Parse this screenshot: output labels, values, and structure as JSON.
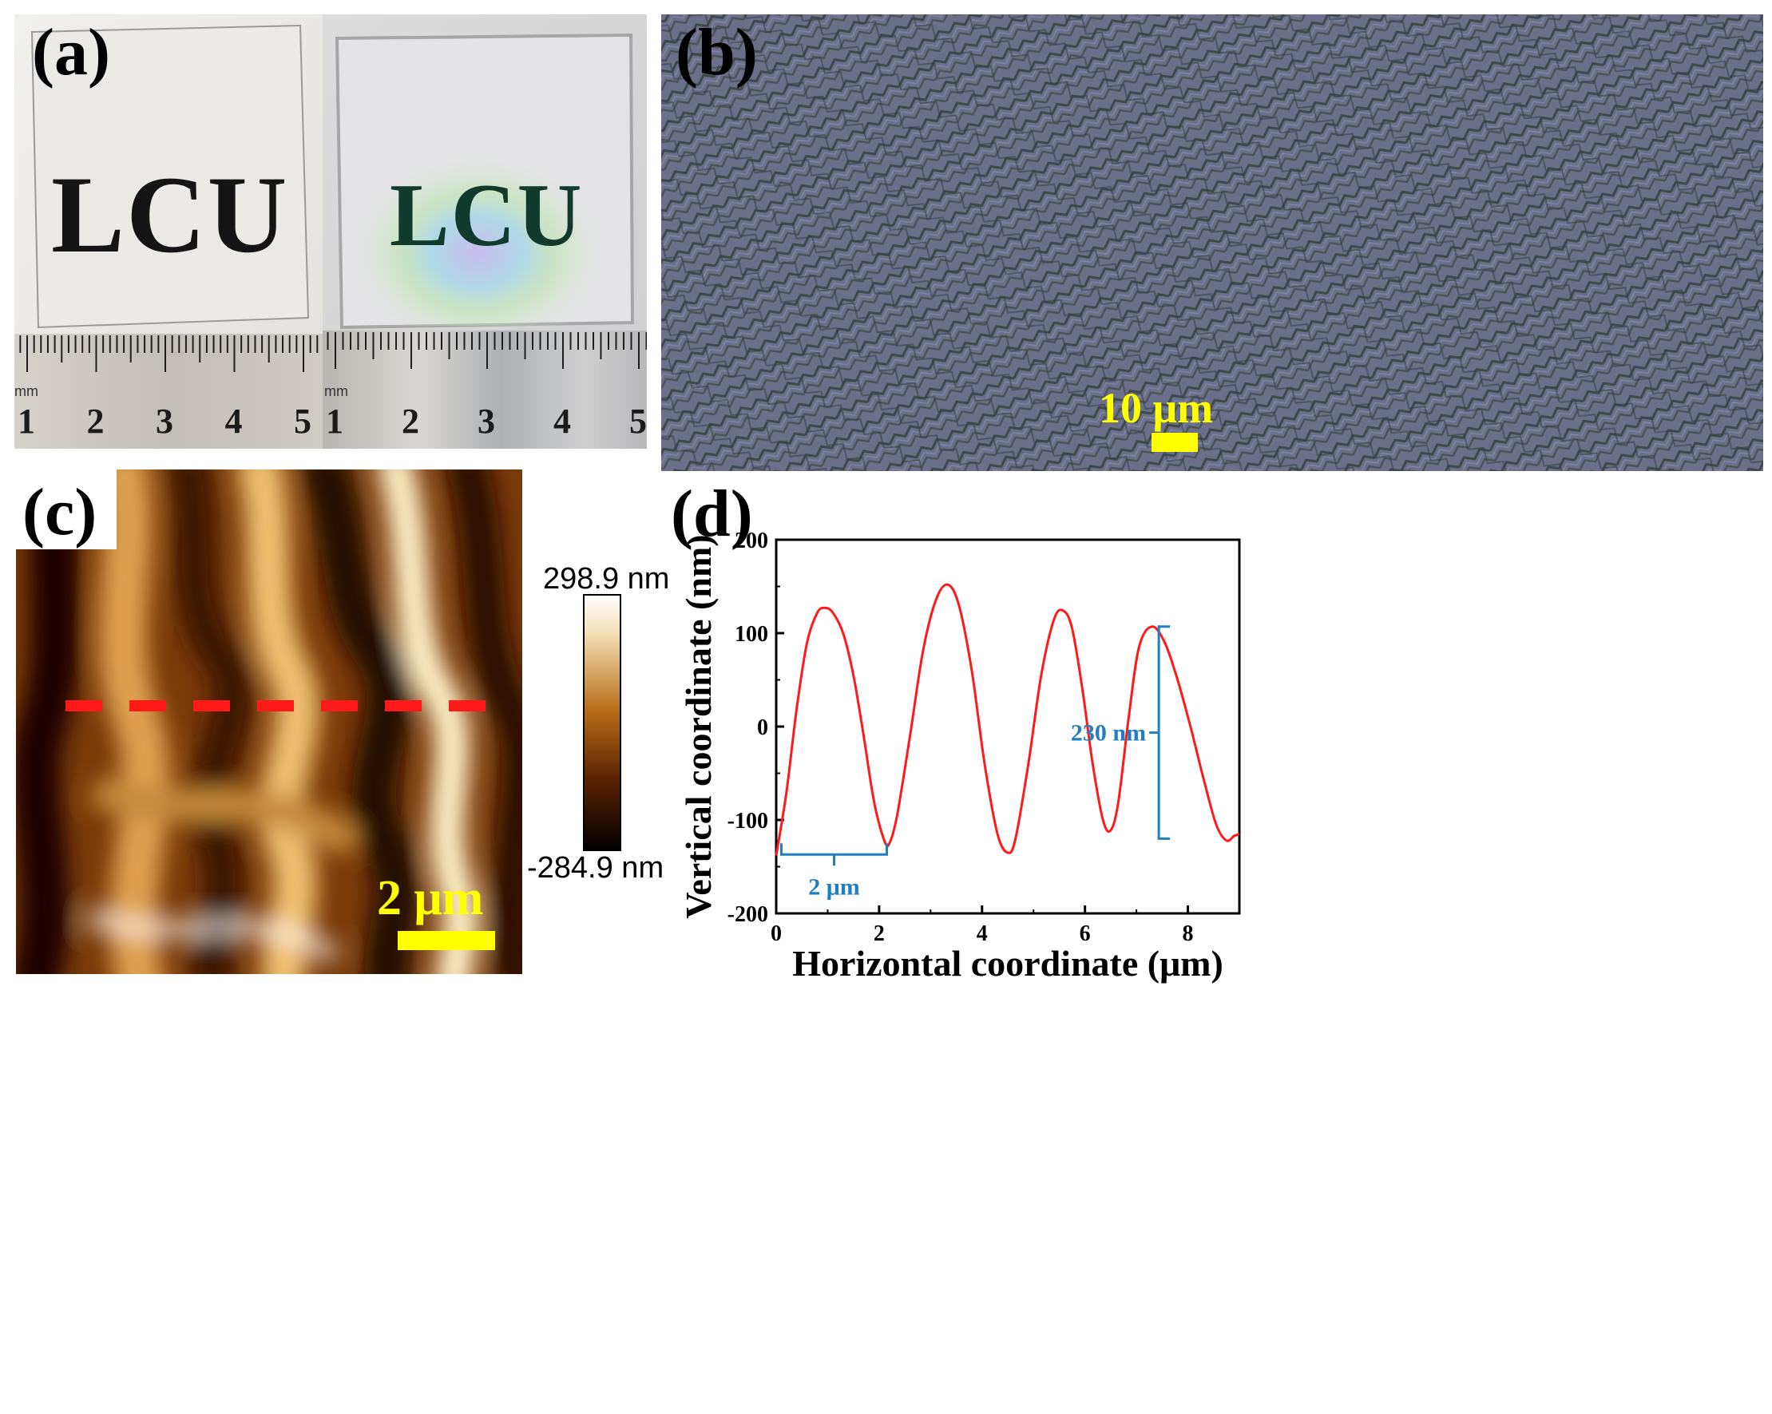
{
  "panels": {
    "a": {
      "label": "(a)",
      "photo_text": "LCU",
      "ruler_unit": "mm",
      "ruler_numbers": [
        "1",
        "2",
        "3",
        "4",
        "5"
      ]
    },
    "b": {
      "label": "(b)",
      "scale_bar": "10 μm"
    },
    "c": {
      "label": "(c)",
      "scale_bar": "2 μm",
      "colorbar_max": "298.9 nm",
      "colorbar_min": "-284.9 nm"
    },
    "d": {
      "label": "(d)"
    }
  },
  "colors": {
    "profile_line": "#ff1a1a",
    "annotation": "#1f7fc0",
    "scale_bar": "#ffff00"
  },
  "chart_data": {
    "type": "line",
    "xlabel": "Horizontal coordinate (μm)",
    "ylabel": "Vertical coordinate (nm)",
    "xlim": [
      0,
      9
    ],
    "ylim": [
      -200,
      200
    ],
    "xticks": [
      0,
      2,
      4,
      6,
      8
    ],
    "yticks": [
      -200,
      -100,
      0,
      100,
      200
    ],
    "grid": false,
    "series": [
      {
        "x": [
          0,
          0.2,
          0.4,
          0.6,
          0.8,
          0.95,
          1.1,
          1.3,
          1.5,
          1.7,
          1.9,
          2.1,
          2.2,
          2.35,
          2.6,
          2.85,
          3.1,
          3.33,
          3.55,
          3.8,
          4.05,
          4.3,
          4.5,
          4.65,
          4.9,
          5.15,
          5.4,
          5.58,
          5.75,
          5.95,
          6.15,
          6.35,
          6.5,
          6.65,
          6.85,
          7.05,
          7.3,
          7.55,
          7.8,
          8.05,
          8.3,
          8.55,
          8.75,
          8.9,
          9.0
        ],
        "y": [
          -138,
          -70,
          20,
          90,
          122,
          127,
          122,
          100,
          55,
          -10,
          -80,
          -122,
          -125,
          -95,
          -10,
          80,
          135,
          152,
          130,
          60,
          -40,
          -115,
          -135,
          -120,
          -40,
          55,
          115,
          124,
          105,
          40,
          -40,
          -100,
          -111,
          -80,
          10,
          85,
          107,
          90,
          50,
          0,
          -55,
          -105,
          -122,
          -117,
          -115
        ]
      }
    ],
    "annotations": [
      {
        "text": "2 μm",
        "type": "period",
        "x_from": 0.1,
        "x_to": 2.15,
        "y": -125
      },
      {
        "text": "230 nm",
        "type": "amplitude",
        "x": 7.0,
        "y_from": -120,
        "y_to": 107
      }
    ]
  }
}
